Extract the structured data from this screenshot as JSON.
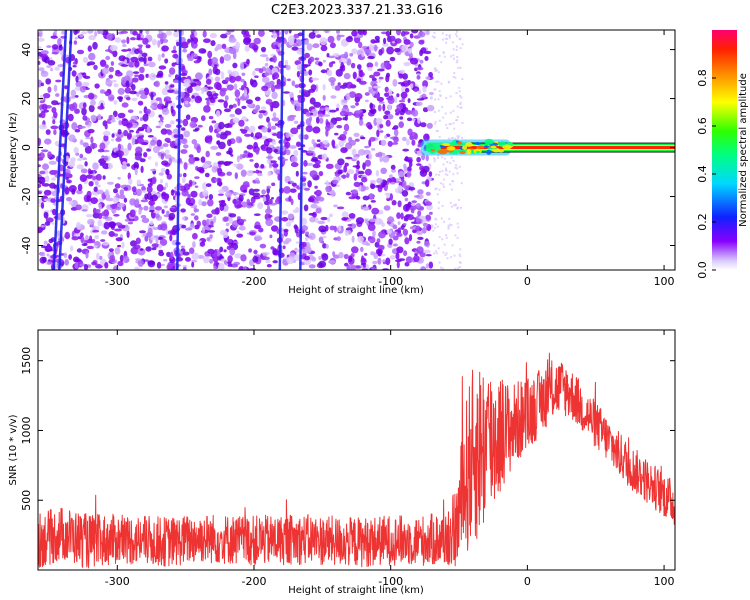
{
  "title": "C2E3.2023.337.21.33.G16",
  "chart_data": [
    {
      "type": "heatmap",
      "xlabel": "Height of straight line (km)",
      "ylabel": "Frequency (Hz)",
      "xlim": [
        -358,
        108
      ],
      "ylim": [
        -50,
        48
      ],
      "xticks": [
        -300,
        -200,
        -100,
        0,
        100
      ],
      "yticks": [
        -40,
        -20,
        0,
        20,
        40
      ],
      "noise_region_x": [
        -358,
        -70
      ],
      "vertical_streaks_x": [
        -342,
        -338,
        -255,
        -180,
        -165
      ],
      "signal_line": {
        "x_start": -78,
        "x_end": 108,
        "frequency": 0,
        "amplitude_core": 0.9,
        "amplitude_edge": 0.55
      },
      "colorbar": {
        "label": "Normalized spectral amplitude",
        "range": [
          0.0,
          1.0
        ],
        "ticks": [
          0.0,
          0.2,
          0.4,
          0.6,
          0.8
        ]
      }
    },
    {
      "type": "line",
      "xlabel": "Height of straight line (km)",
      "ylabel": "SNR (10 * v/v)",
      "xlim": [
        -358,
        108
      ],
      "ylim": [
        0,
        1720
      ],
      "xticks": [
        -300,
        -200,
        -100,
        0,
        100
      ],
      "yticks": [
        500,
        1000,
        1500
      ],
      "color": "#ee3333",
      "series": [
        {
          "x": [
            -358,
            -340,
            -320,
            -300,
            -280,
            -260,
            -240,
            -220,
            -200,
            -180,
            -160,
            -140,
            -120,
            -100,
            -80,
            -60,
            -52,
            -48,
            -44,
            -40,
            -35,
            -30,
            -25,
            -20,
            -15,
            -10,
            -5,
            0,
            5,
            10,
            15,
            20,
            25,
            30,
            35,
            40,
            45,
            50,
            55,
            60,
            65,
            70,
            75,
            80,
            85,
            90,
            95,
            100,
            108
          ],
          "values": [
            210,
            260,
            200,
            220,
            210,
            200,
            230,
            220,
            210,
            215,
            220,
            205,
            200,
            215,
            210,
            220,
            300,
            500,
            700,
            800,
            870,
            900,
            940,
            980,
            1000,
            1040,
            1080,
            1110,
            1160,
            1210,
            1270,
            1300,
            1310,
            1280,
            1230,
            1160,
            1100,
            1040,
            980,
            920,
            850,
            800,
            740,
            700,
            660,
            620,
            580,
            540,
            470
          ],
          "noise": [
            110,
            110,
            110,
            100,
            100,
            100,
            100,
            100,
            100,
            100,
            100,
            100,
            100,
            100,
            100,
            110,
            160,
            260,
            330,
            360,
            360,
            340,
            300,
            250,
            200,
            170,
            160,
            150,
            140,
            130,
            130,
            120,
            110,
            110,
            100,
            100,
            95,
            95,
            95,
            90,
            90,
            90,
            90,
            90,
            90,
            90,
            90,
            90,
            90
          ]
        }
      ]
    }
  ]
}
